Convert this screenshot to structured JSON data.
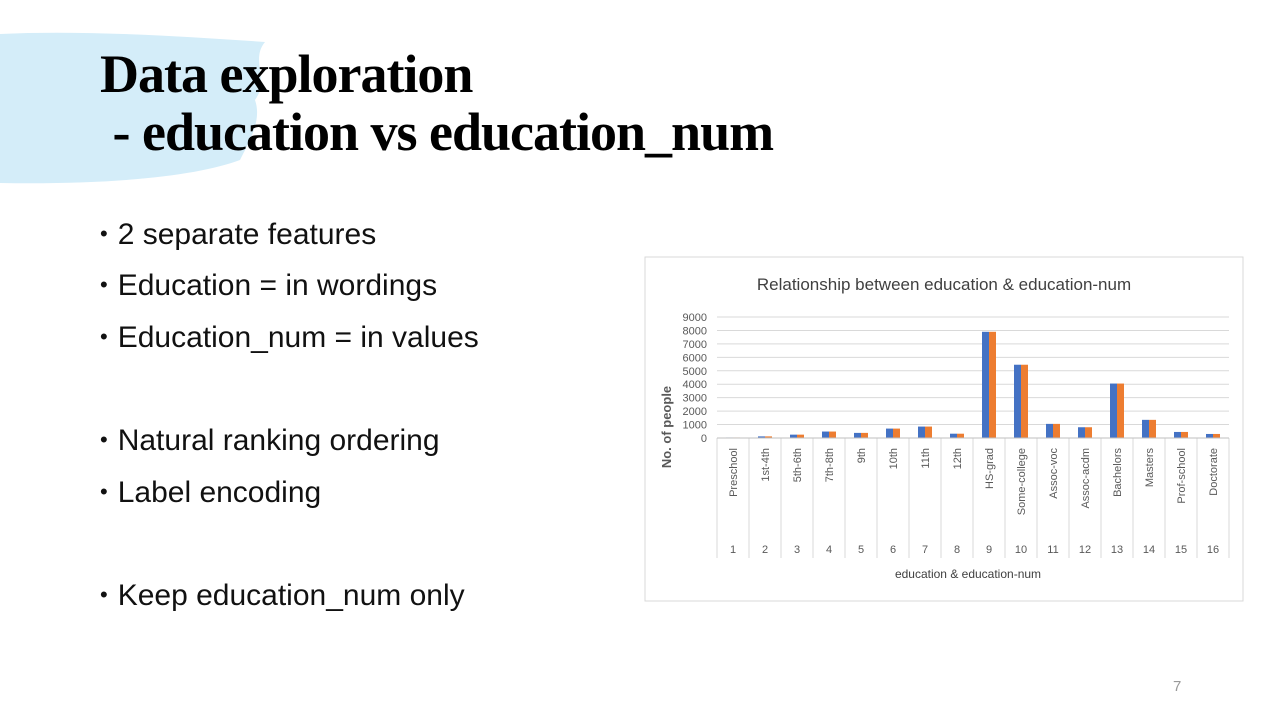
{
  "slide": {
    "title_lines": [
      "Data exploration",
      " - education vs education_num"
    ],
    "bullets": [
      "2 separate features",
      "Education = in wordings",
      "Education_num = in values",
      "Natural ranking ordering",
      "Label encoding",
      "Keep education_num only"
    ],
    "page_number": "7"
  },
  "chart_data": {
    "type": "bar",
    "title": "Relationship between education & education-num",
    "x_label": "education & education-num",
    "y_label": "No. of people",
    "categories": [
      "Preschool",
      "1st-4th",
      "5th-6th",
      "7th-8th",
      "9th",
      "10th",
      "11th",
      "12th",
      "HS-grad",
      "Some-college",
      "Assoc-voc",
      "Assoc-acdm",
      "Bachelors",
      "Masters",
      "Prof-school",
      "Doctorate"
    ],
    "category_numbers": [
      "1",
      "2",
      "3",
      "4",
      "5",
      "6",
      "7",
      "8",
      "9",
      "10",
      "11",
      "12",
      "13",
      "14",
      "15",
      "16"
    ],
    "series": [
      {
        "color": "#4472c4",
        "values": [
          40,
          120,
          250,
          480,
          380,
          700,
          850,
          320,
          7900,
          5450,
          1050,
          800,
          4050,
          1350,
          450,
          300
        ]
      },
      {
        "color": "#ed7d31",
        "values": [
          40,
          120,
          250,
          480,
          380,
          700,
          850,
          320,
          7900,
          5450,
          1050,
          800,
          4050,
          1350,
          450,
          300
        ]
      }
    ],
    "ylim": [
      0,
      9000
    ],
    "yticks": [
      0,
      1000,
      2000,
      3000,
      4000,
      5000,
      6000,
      7000,
      8000,
      9000
    ],
    "grid": true
  }
}
